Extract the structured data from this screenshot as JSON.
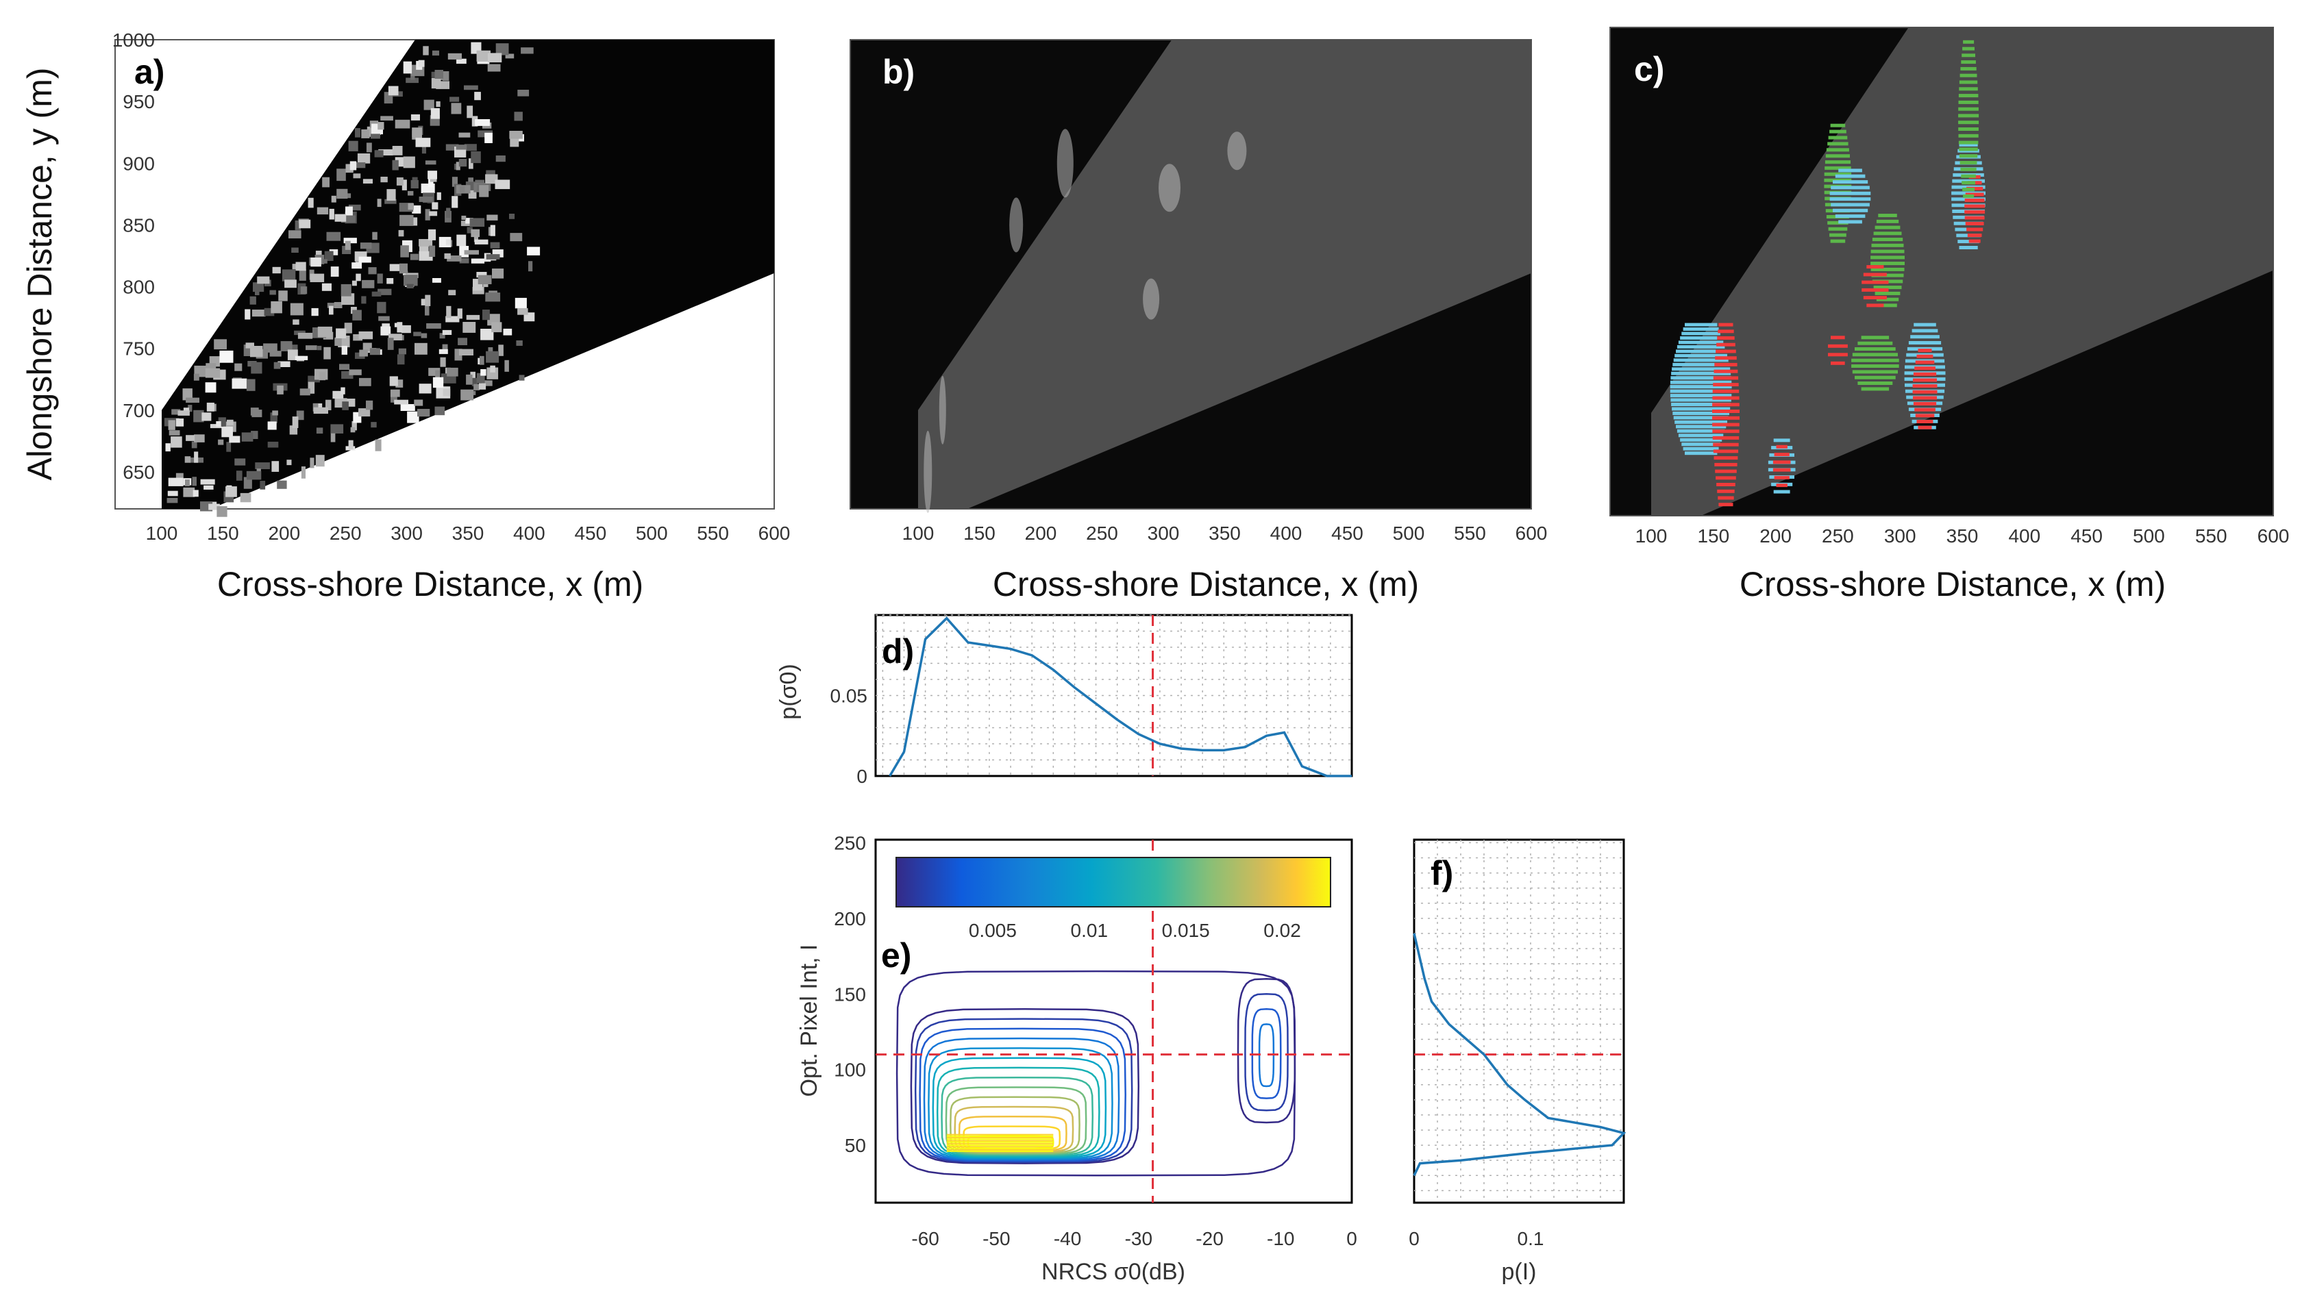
{
  "figure": {
    "panels": {
      "a": {
        "label": "a)",
        "xlabel": "Cross-shore Distance, x (m)",
        "ylabel": "Alongshore Distance, y (m)"
      },
      "b": {
        "label": "b)",
        "xlabel": "Cross-shore Distance, x (m)"
      },
      "c": {
        "label": "c)",
        "xlabel": "Cross-shore Distance, x (m)"
      },
      "d": {
        "label": "d)",
        "ylabel": "p(σ0)"
      },
      "e": {
        "label": "e)",
        "xlabel": "NRCS σ0(dB)",
        "ylabel": "Opt. Pixel Int, I"
      },
      "f": {
        "label": "f)",
        "xlabel": "p(I)"
      }
    }
  },
  "chart_data": [
    {
      "id": "a",
      "type": "heatmap",
      "xlabel": "Cross-shore Distance, x (m)",
      "ylabel": "Alongshore Distance, y (m)",
      "xlim": [
        100,
        600
      ],
      "ylim": [
        620,
        1000
      ],
      "xticks": [
        100,
        150,
        200,
        250,
        300,
        350,
        400,
        450,
        500,
        550,
        600
      ],
      "yticks": [
        650,
        700,
        750,
        800,
        850,
        900,
        950,
        1000
      ],
      "colormap": "gray"
    },
    {
      "id": "b",
      "type": "heatmap",
      "xlabel": "Cross-shore Distance, x (m)",
      "xlim": [
        100,
        600
      ],
      "ylim": [
        620,
        1000
      ],
      "xticks": [
        100,
        150,
        200,
        250,
        300,
        350,
        400,
        450,
        500,
        550,
        600
      ],
      "colormap": "gray"
    },
    {
      "id": "c",
      "type": "heatmap",
      "xlabel": "Cross-shore Distance, x (m)",
      "xlim": [
        100,
        600
      ],
      "ylim": [
        620,
        1000
      ],
      "xticks": [
        100,
        150,
        200,
        250,
        300,
        350,
        400,
        450,
        500,
        550,
        600
      ],
      "colormap": "gray",
      "overlay_colors": {
        "cyan": "#6ec9e6",
        "green": "#5cb84a",
        "red": "#f03a3a"
      }
    },
    {
      "id": "d",
      "type": "line",
      "ylabel": "p(σ0)",
      "xlim": [
        -67,
        0
      ],
      "ylim": [
        0,
        0.1
      ],
      "yticks": [
        0,
        0.05
      ],
      "ytick_labels": [
        "0",
        "0.05"
      ],
      "grid": true,
      "threshold_x": -28,
      "series": [
        {
          "color": "#1f77b4",
          "x": [
            -65,
            -63,
            -60,
            -57,
            -54,
            -51,
            -48,
            -45,
            -42,
            -39,
            -36,
            -33,
            -30,
            -27,
            -24,
            -21,
            -18,
            -15,
            -12,
            -9.5,
            -7,
            -3.5,
            0
          ],
          "y": [
            0,
            0.015,
            0.085,
            0.098,
            0.083,
            0.081,
            0.079,
            0.075,
            0.066,
            0.055,
            0.045,
            0.035,
            0.026,
            0.02,
            0.017,
            0.016,
            0.016,
            0.018,
            0.025,
            0.027,
            0.006,
            0,
            0
          ]
        }
      ]
    },
    {
      "id": "e",
      "type": "contour",
      "xlabel": "NRCS σ0(dB)",
      "ylabel": "Opt. Pixel Int, I",
      "xlim": [
        -67,
        0
      ],
      "ylim": [
        12,
        252
      ],
      "xticks": [
        -60,
        -50,
        -40,
        -30,
        -20,
        -10,
        0
      ],
      "yticks": [
        50,
        100,
        150,
        200,
        250
      ],
      "threshold_x": -28,
      "threshold_y": 110,
      "colorbar": {
        "range": [
          0,
          0.0225
        ],
        "ticks": [
          0.005,
          0.01,
          0.015,
          0.02
        ],
        "tick_labels": [
          "0.005",
          "0.01",
          "0.015",
          "0.02"
        ]
      },
      "density_peak": {
        "x": -50,
        "y": 52
      }
    },
    {
      "id": "f",
      "type": "line",
      "xlabel": "p(I)",
      "xlim": [
        0,
        0.18
      ],
      "ylim": [
        12,
        252
      ],
      "xticks": [
        0,
        0.1
      ],
      "xtick_labels": [
        "0",
        "0.1"
      ],
      "grid": true,
      "threshold_y": 110,
      "series": [
        {
          "color": "#1f77b4",
          "x": [
            0,
            0.003,
            0.009,
            0.015,
            0.02,
            0.03,
            0.045,
            0.06,
            0.07,
            0.08,
            0.095,
            0.115,
            0.16,
            0.18,
            0.17,
            0.1,
            0.04,
            0.005,
            0
          ],
          "y": [
            190,
            180,
            160,
            145,
            140,
            130,
            120,
            110,
            100,
            90,
            80,
            68,
            62,
            58,
            50,
            45,
            40,
            38,
            30
          ]
        }
      ]
    }
  ]
}
